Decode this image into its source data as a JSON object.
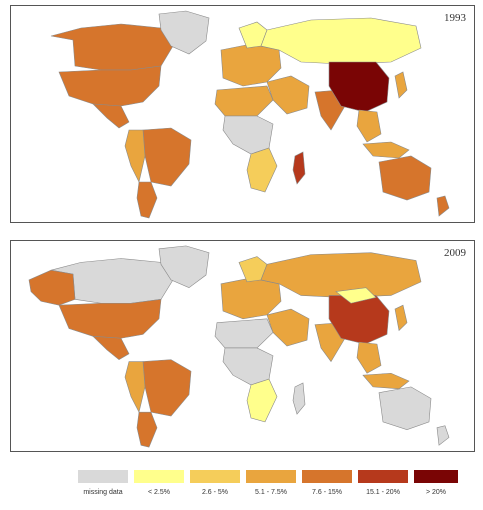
{
  "maps": [
    {
      "year": "1993",
      "regions": [
        {
          "name": "canada",
          "level": 4
        },
        {
          "name": "usa",
          "level": 4
        },
        {
          "name": "mexico",
          "level": 4
        },
        {
          "name": "greenland",
          "level": 0
        },
        {
          "name": "brazil",
          "level": 4
        },
        {
          "name": "argentina",
          "level": 4
        },
        {
          "name": "andes",
          "level": 3
        },
        {
          "name": "europe",
          "level": 3
        },
        {
          "name": "scandinavia",
          "level": 1
        },
        {
          "name": "russia",
          "level": 1
        },
        {
          "name": "middle-east",
          "level": 3
        },
        {
          "name": "north-africa",
          "level": 3
        },
        {
          "name": "central-africa",
          "level": 0
        },
        {
          "name": "southern-africa",
          "level": 2
        },
        {
          "name": "madagascar",
          "level": 5
        },
        {
          "name": "india",
          "level": 4
        },
        {
          "name": "china",
          "level": 6
        },
        {
          "name": "southeast-asia",
          "level": 3
        },
        {
          "name": "indonesia",
          "level": 3
        },
        {
          "name": "japan",
          "level": 3
        },
        {
          "name": "australia",
          "level": 4
        },
        {
          "name": "new-zealand",
          "level": 4
        }
      ]
    },
    {
      "year": "2009",
      "regions": [
        {
          "name": "canada",
          "level": 0
        },
        {
          "name": "alaska",
          "level": 4
        },
        {
          "name": "usa",
          "level": 4
        },
        {
          "name": "mexico",
          "level": 4
        },
        {
          "name": "greenland",
          "level": 0
        },
        {
          "name": "brazil",
          "level": 4
        },
        {
          "name": "argentina",
          "level": 4
        },
        {
          "name": "andes",
          "level": 3
        },
        {
          "name": "europe",
          "level": 3
        },
        {
          "name": "scandinavia",
          "level": 2
        },
        {
          "name": "russia",
          "level": 3
        },
        {
          "name": "middle-east",
          "level": 3
        },
        {
          "name": "north-africa",
          "level": 0
        },
        {
          "name": "central-africa",
          "level": 0
        },
        {
          "name": "southern-africa",
          "level": 1
        },
        {
          "name": "madagascar",
          "level": 0
        },
        {
          "name": "india",
          "level": 3
        },
        {
          "name": "china",
          "level": 5
        },
        {
          "name": "mongolia",
          "level": 1
        },
        {
          "name": "southeast-asia",
          "level": 3
        },
        {
          "name": "indonesia",
          "level": 3
        },
        {
          "name": "japan",
          "level": 3
        },
        {
          "name": "australia",
          "level": 0
        },
        {
          "name": "new-zealand",
          "level": 0
        }
      ]
    }
  ],
  "legend": [
    {
      "label": "missing data",
      "color": "#d9d9d9"
    },
    {
      "label": "< 2.5%",
      "color": "#ffff8c"
    },
    {
      "label": "2.6 - 5%",
      "color": "#f5cd5a"
    },
    {
      "label": "5.1 - 7.5%",
      "color": "#e9a53e"
    },
    {
      "label": "7.6 - 15%",
      "color": "#d6752c"
    },
    {
      "label": "15.1 - 20%",
      "color": "#b6391c"
    },
    {
      "label": "> 20%",
      "color": "#7a0505"
    }
  ]
}
